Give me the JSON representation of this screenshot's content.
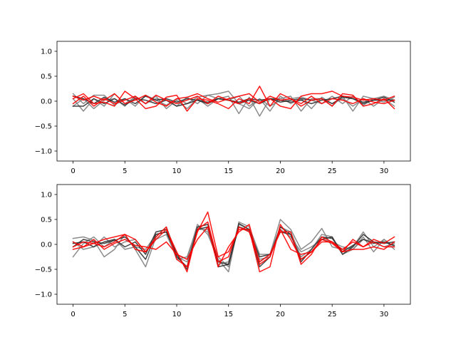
{
  "chart_data": [
    {
      "type": "line",
      "title": "",
      "xlabel": "",
      "ylabel": "",
      "xlim": [
        -1.55,
        32.55
      ],
      "ylim": [
        -1.2,
        1.2
      ],
      "xticks": [
        0,
        5,
        10,
        15,
        20,
        25,
        30
      ],
      "xtick_labels": [
        "0",
        "5",
        "10",
        "15",
        "20",
        "25",
        "30"
      ],
      "yticks": [
        -1.0,
        -0.5,
        0.0,
        0.5,
        1.0
      ],
      "ytick_labels": [
        "−1.0",
        "−0.5",
        "0.0",
        "0.5",
        "1.0"
      ],
      "grid": false,
      "x": [
        0,
        1,
        2,
        3,
        4,
        5,
        6,
        7,
        8,
        9,
        10,
        11,
        12,
        13,
        14,
        15,
        16,
        17,
        18,
        19,
        20,
        21,
        22,
        23,
        24,
        25,
        26,
        27,
        28,
        29,
        30,
        31
      ],
      "series": [
        {
          "color": "#808080",
          "values": [
            0.15,
            -0.05,
            0.12,
            0.12,
            -0.08,
            0.05,
            -0.1,
            0.12,
            0.02,
            -0.08,
            0.05,
            -0.05,
            0.08,
            0.12,
            0.15,
            0.2,
            -0.05,
            -0.15,
            0.05,
            -0.1,
            0.02,
            0.05,
            0.08,
            0.02,
            -0.05,
            0.1,
            -0.05,
            0.1,
            -0.08,
            0.05,
            -0.02,
            0.08
          ]
        },
        {
          "color": "#808080",
          "values": [
            0.05,
            -0.2,
            0.05,
            -0.1,
            0.15,
            -0.05,
            0.08,
            -0.05,
            0.05,
            0.02,
            -0.1,
            0.08,
            -0.05,
            0.12,
            0.05,
            0.1,
            -0.25,
            0.08,
            -0.3,
            0.05,
            0.05,
            0.1,
            -0.2,
            0.05,
            0.05,
            -0.1,
            0.1,
            -0.2,
            0.1,
            0.05,
            0.1,
            0.02
          ]
        },
        {
          "color": "#808080",
          "values": [
            -0.1,
            0.05,
            -0.15,
            0.02,
            0.05,
            -0.1,
            0.1,
            -0.05,
            0.1,
            -0.15,
            0.02,
            -0.15,
            0.05,
            -0.1,
            0.05,
            0.02,
            0.1,
            -0.1,
            0.05,
            -0.2,
            0.1,
            -0.05,
            0.05,
            -0.15,
            0.08,
            -0.05,
            0.05,
            -0.1,
            0.05,
            -0.1,
            0.05,
            -0.1
          ]
        },
        {
          "color": "#303030",
          "values": [
            0.1,
            0.05,
            -0.05,
            0.08,
            -0.02,
            0.05,
            -0.05,
            0.1,
            0.02,
            0.05,
            -0.02,
            0.05,
            0.02,
            -0.05,
            0.05,
            0.02,
            -0.02,
            0.05,
            0.02,
            0.05,
            -0.02,
            0.02,
            0.05,
            0.02,
            0.05,
            -0.05,
            0.08,
            0.05,
            -0.05,
            0.02,
            0.08,
            -0.02
          ]
        },
        {
          "color": "#303030",
          "values": [
            -0.1,
            -0.1,
            0.05,
            -0.05,
            0.05,
            -0.08,
            0.05,
            0.02,
            -0.05,
            0.02,
            -0.1,
            -0.05,
            0.02,
            -0.02,
            0.05,
            0.02,
            -0.05,
            0.02,
            -0.05,
            0.05,
            0.02,
            -0.02,
            0.02,
            -0.05,
            0.02,
            0.05,
            0.1,
            0.05,
            -0.02,
            0.02,
            0.02,
            0.02
          ]
        },
        {
          "color": "#ff0000",
          "values": [
            0.05,
            0.15,
            -0.05,
            -0.02,
            -0.1,
            0.2,
            0.05,
            -0.15,
            -0.1,
            0.08,
            0.12,
            -0.2,
            0.05,
            0.02,
            -0.05,
            -0.15,
            0.05,
            -0.05,
            0.3,
            -0.1,
            0.15,
            0.05,
            -0.1,
            0.02,
            0.05,
            -0.1,
            0.15,
            0.12,
            -0.1,
            -0.05,
            0.05,
            -0.15
          ]
        },
        {
          "color": "#ff0000",
          "values": [
            0.1,
            0.02,
            0.1,
            0.02,
            0.15,
            -0.05,
            0.02,
            0.12,
            -0.02,
            -0.1,
            0.05,
            0.08,
            0.15,
            0.05,
            -0.02,
            0.05,
            0.1,
            0.15,
            -0.02,
            0.05,
            -0.1,
            -0.15,
            0.1,
            0.15,
            0.15,
            0.2,
            0.1,
            0.08,
            0.02,
            0.05,
            0.02,
            0.1
          ]
        },
        {
          "color": "#ff0000",
          "values": [
            -0.05,
            0.1,
            -0.1,
            0.05,
            -0.05,
            0.02,
            0.1,
            -0.05,
            0.12,
            0.02,
            -0.05,
            0.02,
            0.1,
            -0.05,
            0.1,
            0.02,
            -0.05,
            0.05,
            -0.05,
            0.1,
            0.02,
            0.05,
            -0.05,
            0.1,
            -0.05,
            0.05,
            0.02,
            -0.05,
            0.05,
            -0.02,
            -0.05,
            0.02
          ]
        }
      ]
    },
    {
      "type": "line",
      "title": "",
      "xlabel": "",
      "ylabel": "",
      "xlim": [
        -1.55,
        32.55
      ],
      "ylim": [
        -1.2,
        1.2
      ],
      "xticks": [
        0,
        5,
        10,
        15,
        20,
        25,
        30
      ],
      "xtick_labels": [
        "0",
        "5",
        "10",
        "15",
        "20",
        "25",
        "30"
      ],
      "yticks": [
        -1.0,
        -0.5,
        0.0,
        0.5,
        1.0
      ],
      "ytick_labels": [
        "−1.0",
        "−0.5",
        "0.0",
        "0.5",
        "1.0"
      ],
      "grid": false,
      "x": [
        0,
        1,
        2,
        3,
        4,
        5,
        6,
        7,
        8,
        9,
        10,
        11,
        12,
        13,
        14,
        15,
        16,
        17,
        18,
        19,
        20,
        21,
        22,
        23,
        24,
        25,
        26,
        27,
        28,
        29,
        30,
        31
      ],
      "series": [
        {
          "color": "#808080",
          "values": [
            0.12,
            0.15,
            0.08,
            -0.25,
            -0.1,
            0.2,
            -0.1,
            -0.45,
            0.15,
            0.35,
            -0.2,
            -0.3,
            0.4,
            0.2,
            -0.3,
            -0.55,
            0.45,
            0.35,
            -0.2,
            -0.2,
            0.5,
            0.3,
            -0.1,
            0.05,
            0.32,
            -0.05,
            -0.1,
            -0.05,
            0.25,
            -0.05,
            0.1,
            -0.05
          ]
        },
        {
          "color": "#808080",
          "values": [
            -0.25,
            0.02,
            0.15,
            -0.05,
            0.1,
            -0.1,
            -0.05,
            -0.1,
            0.2,
            0.25,
            -0.3,
            -0.25,
            0.35,
            0.25,
            -0.25,
            -0.45,
            0.4,
            0.3,
            -0.35,
            -0.2,
            0.35,
            0.25,
            -0.25,
            -0.1,
            0.2,
            0.15,
            -0.2,
            -0.1,
            0.15,
            -0.15,
            0.1,
            -0.1
          ]
        },
        {
          "color": "#808080",
          "values": [
            0.05,
            -0.1,
            -0.05,
            0.15,
            -0.05,
            0.05,
            0.1,
            -0.15,
            0.1,
            0.2,
            -0.25,
            -0.35,
            0.3,
            0.3,
            -0.4,
            -0.35,
            0.35,
            0.25,
            -0.3,
            -0.25,
            0.3,
            0.15,
            -0.15,
            -0.05,
            0.1,
            0.05,
            -0.05,
            -0.1,
            0.1,
            0.05,
            -0.05,
            0.02
          ]
        },
        {
          "color": "#303030",
          "values": [
            0.02,
            0.05,
            -0.05,
            0.05,
            0.1,
            -0.05,
            0.05,
            -0.2,
            0.25,
            0.3,
            -0.25,
            -0.45,
            0.35,
            0.4,
            -0.45,
            -0.4,
            0.42,
            0.3,
            -0.45,
            -0.25,
            0.35,
            0.2,
            -0.35,
            -0.1,
            0.15,
            0.12,
            -0.15,
            -0.02,
            0.1,
            0.02,
            0.05,
            -0.02
          ]
        },
        {
          "color": "#303030",
          "values": [
            -0.05,
            0.1,
            0.05,
            0.02,
            0.08,
            0.15,
            -0.05,
            -0.3,
            0.2,
            0.25,
            -0.2,
            -0.5,
            0.3,
            0.35,
            -0.35,
            -0.4,
            0.35,
            0.28,
            -0.25,
            -0.2,
            0.25,
            0.2,
            -0.3,
            -0.15,
            0.1,
            0.15,
            -0.2,
            -0.05,
            0.2,
            0.05,
            0.02,
            0.05
          ]
        },
        {
          "color": "#ff0000",
          "values": [
            0.05,
            -0.05,
            0.02,
            0.1,
            0.15,
            0.2,
            -0.1,
            -0.15,
            0.15,
            0.35,
            -0.3,
            -0.45,
            0.25,
            0.65,
            -0.25,
            -0.15,
            0.3,
            0.3,
            -0.55,
            -0.45,
            0.4,
            0.1,
            -0.3,
            -0.15,
            0.05,
            0.05,
            -0.15,
            0.1,
            -0.05,
            0.1,
            0.02,
            0.15
          ]
        },
        {
          "color": "#ff0000",
          "values": [
            -0.05,
            0.05,
            0.02,
            -0.05,
            0.05,
            0.2,
            0.1,
            -0.15,
            0.1,
            0.3,
            -0.15,
            -0.55,
            0.3,
            0.45,
            -0.35,
            -0.25,
            0.35,
            0.25,
            -0.35,
            -0.2,
            0.25,
            0.25,
            -0.4,
            -0.2,
            0.15,
            0.05,
            -0.1,
            0.05,
            -0.05,
            0.05,
            -0.05,
            -0.05
          ]
        },
        {
          "color": "#ff0000",
          "values": [
            -0.1,
            -0.05,
            0.1,
            -0.1,
            0.02,
            0.1,
            -0.02,
            -0.05,
            -0.1,
            0.05,
            -0.2,
            -0.3,
            0.1,
            0.35,
            -0.45,
            -0.05,
            0.25,
            0.4,
            -0.4,
            -0.25,
            0.3,
            -0.1,
            -0.2,
            -0.15,
            0.1,
            0.02,
            -0.15,
            -0.1,
            -0.1,
            -0.05,
            -0.1,
            0.05
          ]
        }
      ]
    }
  ]
}
